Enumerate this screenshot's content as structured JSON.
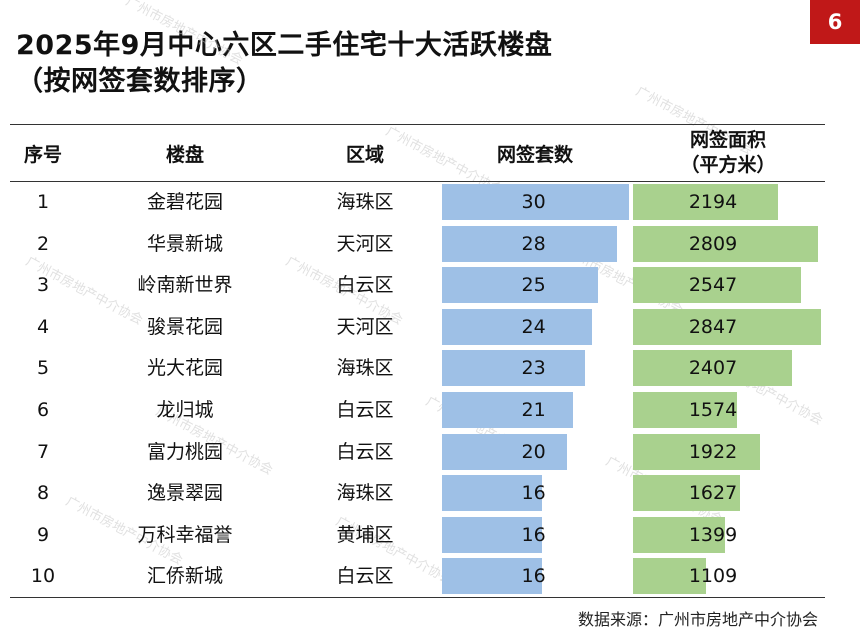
{
  "page_number": "6",
  "title_line1": "2025年9月中心六区二手住宅十大活跃楼盘",
  "title_line2": "（按网签套数排序）",
  "source": "数据来源：广州市房地产中介协会",
  "watermark_text": "广州市房地产中介协会",
  "colors": {
    "units_bar": "#9ec0e6",
    "area_bar": "#a9d18e",
    "badge": "#c01818"
  },
  "chart_data": {
    "type": "table",
    "headers": {
      "rank": "序号",
      "name": "楼盘",
      "district": "区域",
      "units": "网签套数",
      "area_line1": "网签面积",
      "area_line2": "（平方米）"
    },
    "rows": [
      {
        "rank": "1",
        "name": "金碧花园",
        "district": "海珠区",
        "units": 30,
        "area": 2194
      },
      {
        "rank": "2",
        "name": "华景新城",
        "district": "天河区",
        "units": 28,
        "area": 2809
      },
      {
        "rank": "3",
        "name": "岭南新世界",
        "district": "白云区",
        "units": 25,
        "area": 2547
      },
      {
        "rank": "4",
        "name": "骏景花园",
        "district": "天河区",
        "units": 24,
        "area": 2847
      },
      {
        "rank": "5",
        "name": "光大花园",
        "district": "海珠区",
        "units": 23,
        "area": 2407
      },
      {
        "rank": "6",
        "name": "龙归城",
        "district": "白云区",
        "units": 21,
        "area": 1574
      },
      {
        "rank": "7",
        "name": "富力桃园",
        "district": "白云区",
        "units": 20,
        "area": 1922
      },
      {
        "rank": "8",
        "name": "逸景翠园",
        "district": "海珠区",
        "units": 16,
        "area": 1627
      },
      {
        "rank": "9",
        "name": "万科幸福誉",
        "district": "黄埔区",
        "units": 16,
        "area": 1399
      },
      {
        "rank": "10",
        "name": "汇侨新城",
        "district": "白云区",
        "units": 16,
        "area": 1109
      }
    ]
  }
}
